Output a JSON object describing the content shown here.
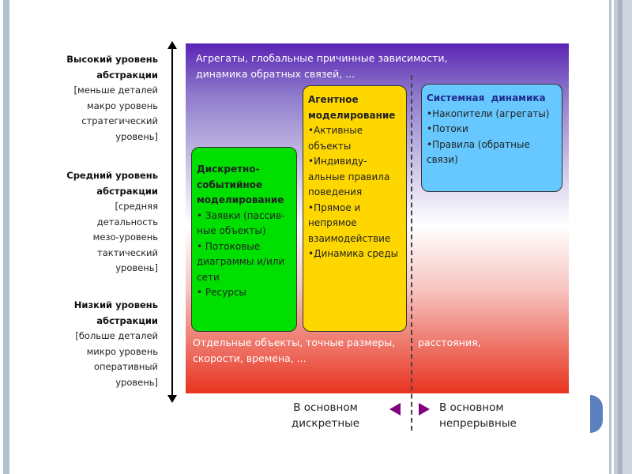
{
  "levels": [
    {
      "title": [
        "Высокий уровень",
        "абстракции"
      ],
      "desc": [
        "[меньше деталей",
        "макро уровень",
        "стратегический",
        "уровень]"
      ]
    },
    {
      "title": [
        "Средний уровень",
        "абстракции"
      ],
      "desc": [
        "[средняя",
        "детальность",
        "мезо-уровень",
        "тактический",
        "уровень]"
      ]
    },
    {
      "title": [
        "Низкий уровень",
        "абстракции"
      ],
      "desc": [
        "[больше деталей",
        "микро уровень",
        "оперативный",
        "уровень]"
      ]
    }
  ],
  "top_text": [
    "Агрегаты, глобальные причинные зависимости,",
    "динамика обратных связей, ..."
  ],
  "bottom_text": [
    "Отдельные объекты, точные размеры,",
    "расстояния,",
    "скорости, времена, ..."
  ],
  "boxes": {
    "discrete": {
      "title": "Дискретно-событийное моделирование",
      "items": [
        "• Заявки (пассив-ные объекты)",
        "• Потоковые диаграммы и/или сети",
        "• Ресурсы"
      ],
      "color": "#00e000"
    },
    "agent": {
      "title": "Агентное моделирование",
      "items": [
        "•Активные объекты",
        "•Индивиду-альные правила поведения",
        "•Прямое и непрямое взаимодействие",
        "•Динамика среды"
      ],
      "color": "#ffd700"
    },
    "sd": {
      "title": "Системная  динамика",
      "items": [
        "•Накопители (агрегаты)",
        "•Потоки",
        "•Правила (обратные связи)"
      ],
      "color": "#66c8ff"
    }
  },
  "axis_labels": {
    "left": "В основном дискретные",
    "right": "В основном непрерывные"
  },
  "colors": {
    "arrow": "#800080",
    "gradient_top": "#5a24b4",
    "gradient_bottom": "#e8331f"
  }
}
